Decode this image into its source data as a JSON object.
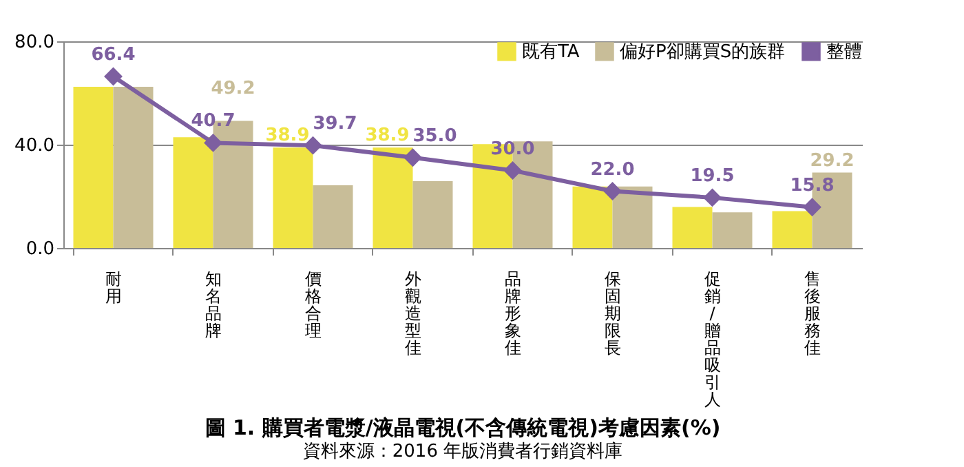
{
  "chart_data": {
    "type": "bar",
    "title": "圖 1. 購買者電漿/液晶電視(不含傳統電視)考慮因素(%)",
    "annotations": [
      "資料來源：2016 年版消費者行銷資料庫"
    ],
    "categories": [
      "耐用",
      "知名品牌",
      "價格合理",
      "外觀造型佳",
      "品牌形象佳",
      "保固期限長",
      "促銷/贈品吸引人",
      "售後服務佳"
    ],
    "series": [
      {
        "name": "既有TA",
        "color": "#f0e442",
        "values": [
          62.4,
          42.9,
          38.9,
          38.9,
          40.2,
          23.8,
          15.9,
          14.3
        ],
        "value_labels": [
          null,
          null,
          "38.9",
          "38.9",
          null,
          null,
          null,
          null
        ]
      },
      {
        "name": "偏好P卻購買S的族群",
        "color": "#c8bd98",
        "values": [
          62.4,
          49.2,
          24.3,
          25.9,
          41.3,
          23.8,
          13.8,
          29.2
        ],
        "value_labels": [
          null,
          "49.2",
          null,
          null,
          null,
          null,
          null,
          "29.2"
        ]
      },
      {
        "name": "整體",
        "type": "line",
        "color": "#7d5fa0",
        "marker": "diamond",
        "values": [
          66.4,
          40.7,
          39.7,
          35.0,
          30.0,
          22.0,
          19.5,
          15.8
        ],
        "value_labels": [
          "66.4",
          "40.7",
          "39.7",
          "35.0",
          "30.0",
          "22.0",
          "19.5",
          "15.8"
        ]
      }
    ],
    "ylim": [
      0,
      80
    ],
    "yticks": [
      {
        "value": 0,
        "label": "0.0"
      },
      {
        "value": 40,
        "label": "40.0"
      },
      {
        "value": 80,
        "label": "80.0"
      }
    ],
    "grid": "y",
    "legend": "top right"
  }
}
